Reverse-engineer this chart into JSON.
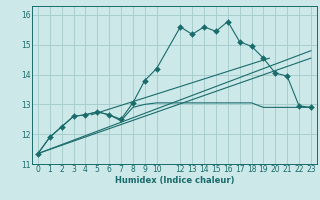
{
  "xlabel": "Humidex (Indice chaleur)",
  "bg_color": "#cce8e8",
  "grid_color": "#a8cece",
  "line_color": "#1a6b6b",
  "xlim": [
    -0.5,
    23.5
  ],
  "ylim": [
    11.0,
    16.3
  ],
  "yticks": [
    11,
    12,
    13,
    14,
    15,
    16
  ],
  "xticks": [
    0,
    1,
    2,
    3,
    4,
    5,
    6,
    7,
    8,
    9,
    10,
    12,
    13,
    14,
    15,
    16,
    17,
    18,
    19,
    20,
    21,
    22,
    23
  ],
  "curve1_x": [
    0,
    1,
    2,
    3,
    4,
    5,
    6,
    7,
    8,
    9,
    10,
    12,
    13,
    14,
    15,
    16,
    17,
    18,
    19,
    20,
    21,
    22,
    23
  ],
  "curve1_y": [
    11.35,
    11.9,
    12.25,
    12.6,
    12.65,
    12.75,
    12.65,
    12.5,
    13.05,
    13.8,
    14.2,
    15.6,
    15.35,
    15.6,
    15.45,
    15.78,
    15.1,
    14.95,
    14.55,
    14.05,
    13.95,
    12.95,
    12.9
  ],
  "curve2_x": [
    0,
    1,
    2,
    3,
    4,
    5,
    6,
    7,
    8,
    9,
    10,
    12,
    13,
    14,
    15,
    16,
    17,
    18,
    19,
    20,
    21,
    22,
    23
  ],
  "curve2_y": [
    11.35,
    11.9,
    12.25,
    12.6,
    12.65,
    12.75,
    12.65,
    12.45,
    12.9,
    13.0,
    13.05,
    13.05,
    13.05,
    13.05,
    13.05,
    13.05,
    13.05,
    13.05,
    12.9,
    12.9,
    12.9,
    12.9,
    12.9
  ],
  "line1_x": [
    0,
    23
  ],
  "line1_y": [
    11.35,
    14.8
  ],
  "line2_x": [
    0,
    23
  ],
  "line2_y": [
    11.35,
    14.55
  ],
  "line3_x": [
    4.5,
    19.5
  ],
  "line3_y": [
    12.65,
    14.55
  ],
  "marker_size": 3.0
}
